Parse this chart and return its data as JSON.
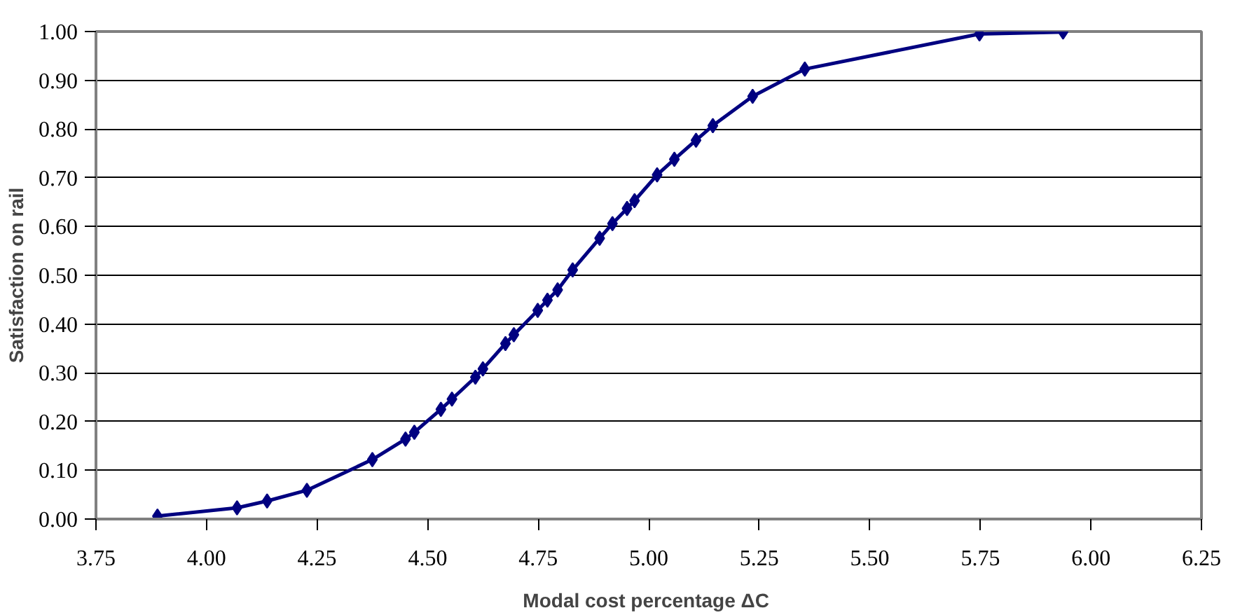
{
  "chart_data": {
    "type": "line",
    "xlabel": "Modal cost percentage  ΔC",
    "ylabel": "Satisfaction on rail",
    "x": [
      3.889,
      4.069,
      4.137,
      4.227,
      4.375,
      4.45,
      4.47,
      4.53,
      4.555,
      4.608,
      4.625,
      4.676,
      4.695,
      4.749,
      4.771,
      4.794,
      4.828,
      4.889,
      4.918,
      4.951,
      4.968,
      5.019,
      5.058,
      5.107,
      5.145,
      5.235,
      5.353,
      5.748,
      5.937
    ],
    "series": [
      {
        "color": "#000080",
        "values": [
          0.006,
          0.023,
          0.037,
          0.059,
          0.122,
          0.164,
          0.178,
          0.225,
          0.246,
          0.291,
          0.308,
          0.36,
          0.378,
          0.428,
          0.449,
          0.47,
          0.511,
          0.576,
          0.606,
          0.637,
          0.653,
          0.706,
          0.738,
          0.777,
          0.807,
          0.867,
          0.923,
          0.995,
          0.999
        ]
      }
    ],
    "xlim": [
      3.75,
      6.25
    ],
    "xticks": [
      {
        "value": 3.75,
        "label": "3.75"
      },
      {
        "value": 4,
        "label": "4.00"
      },
      {
        "value": 4.25,
        "label": "4.25"
      },
      {
        "value": 4.5,
        "label": "4.50"
      },
      {
        "value": 4.75,
        "label": "4.75"
      },
      {
        "value": 5,
        "label": "5.00"
      },
      {
        "value": 5.25,
        "label": "5.25"
      },
      {
        "value": 5.5,
        "label": "5.50"
      },
      {
        "value": 5.75,
        "label": "5.75"
      },
      {
        "value": 6,
        "label": "6.00"
      },
      {
        "value": 6.25,
        "label": "6.25"
      }
    ],
    "ylim": [
      0,
      1
    ],
    "yticks": [
      {
        "value": 0,
        "label": "0.00"
      },
      {
        "value": 0.1,
        "label": "0.10"
      },
      {
        "value": 0.2,
        "label": "0.20"
      },
      {
        "value": 0.3,
        "label": "0.30"
      },
      {
        "value": 0.4,
        "label": "0.40"
      },
      {
        "value": 0.5,
        "label": "0.50"
      },
      {
        "value": 0.6,
        "label": "0.60"
      },
      {
        "value": 0.7,
        "label": "0.70"
      },
      {
        "value": 0.8,
        "label": "0.80"
      },
      {
        "value": 0.9,
        "label": "0.90"
      },
      {
        "value": 1,
        "label": "1.00"
      }
    ],
    "grid": "y",
    "marker": "diamond",
    "line_style": "solid"
  }
}
